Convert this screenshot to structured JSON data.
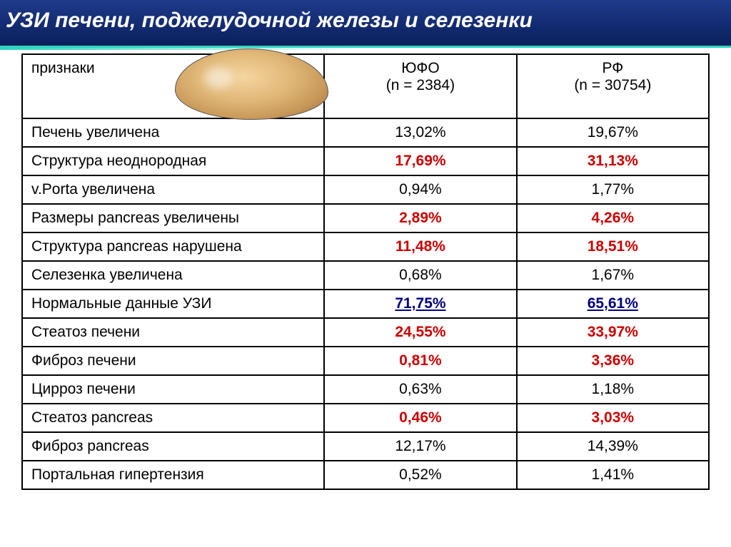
{
  "title": "УЗИ печени, поджелудочной железы и селезенки",
  "columns": {
    "signs": "признаки",
    "col1_name": "ЮФО",
    "col1_n": "(n = 2384)",
    "col2_name": "РФ",
    "col2_n": "(n = 30754)"
  },
  "rows": [
    {
      "sign": "Печень увеличена",
      "v1": "13,02%",
      "v2": "19,67%",
      "style1": "normal",
      "style2": "normal"
    },
    {
      "sign": "Структура неоднородная",
      "v1": "17,69%",
      "v2": "31,13%",
      "style1": "red",
      "style2": "red"
    },
    {
      "sign": "v.Porta увеличена",
      "v1": "0,94%",
      "v2": "1,77%",
      "style1": "normal",
      "style2": "normal"
    },
    {
      "sign": "Размеры pancreas увеличены",
      "v1": "2,89%",
      "v2": "4,26%",
      "style1": "red",
      "style2": "red"
    },
    {
      "sign": "Структура pancreas нарушена",
      "v1": "11,48%",
      "v2": "18,51%",
      "style1": "red",
      "style2": "red"
    },
    {
      "sign": "Селезенка увеличена",
      "v1": "0,68%",
      "v2": "1,67%",
      "style1": "normal",
      "style2": "normal"
    },
    {
      "sign": "Нормальные данные УЗИ",
      "v1": "71,75%",
      "v2": "65,61%",
      "style1": "underline",
      "style2": "underline"
    },
    {
      "sign": "Стеатоз печени",
      "v1": "24,55%",
      "v2": "33,97%",
      "style1": "red",
      "style2": "red"
    },
    {
      "sign": "Фиброз печени",
      "v1": "0,81%",
      "v2": "3,36%",
      "style1": "red",
      "style2": "red"
    },
    {
      "sign": "Цирроз печени",
      "v1": "0,63%",
      "v2": "1,18%",
      "style1": "normal",
      "style2": "normal"
    },
    {
      "sign": "Стеатоз pancreas",
      "v1": "0,46%",
      "v2": "3,03%",
      "style1": "red",
      "style2": "red"
    },
    {
      "sign": "Фиброз pancreas",
      "v1": "12,17%",
      "v2": "14,39%",
      "style1": "normal",
      "style2": "normal"
    },
    {
      "sign": "Портальная гипертензия",
      "v1": "0,52%",
      "v2": "1,41%",
      "style1": "normal",
      "style2": "normal"
    }
  ],
  "styling": {
    "header_bg_start": "#1e3a8a",
    "header_bg_end": "#0a1f5c",
    "header_text_color": "#ffffff",
    "header_fontsize": 30,
    "accent_line": "#2dd4bf",
    "table_border": "#000000",
    "cell_fontsize": 21,
    "red_color": "#cc0000",
    "underline_color": "#000080",
    "background": "#ffffff"
  }
}
